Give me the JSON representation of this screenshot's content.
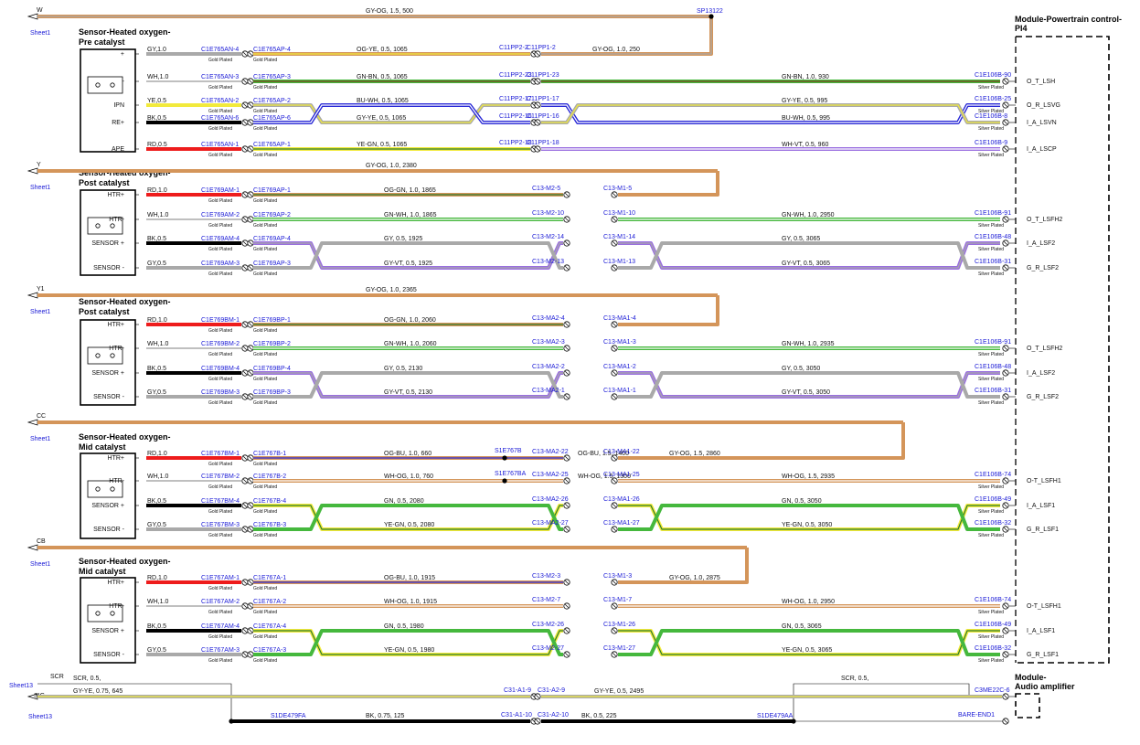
{
  "modules": {
    "pcm_title_line1": "Module-Powertrain control-",
    "pcm_title_line2": "PI4",
    "amp_title_line1": "Module-",
    "amp_title_line2": "Audio amplifier"
  },
  "colors": {
    "orange": "#d4955a",
    "gray": "#a9a9a9",
    "yellow": "#f2ea3c",
    "green": "#45b83d",
    "blue": "#2a2ad6",
    "black": "#000000",
    "red": "#ee1c1c",
    "purple": "#9a6fe0",
    "brown": "#7b3f1e",
    "darkgreen": "#2d7c2d"
  },
  "plating": {
    "gold": "Gold Plated",
    "silver": "Silver Plated"
  },
  "sections": [
    {
      "id": "s1",
      "feed": {
        "letter": "W",
        "sheet": "Sheet1",
        "spec": "GY-OG, 1.5, 500",
        "splice": "SP13122"
      },
      "title": [
        "Sensor-Heated oxygen-",
        "Pre catalyst"
      ],
      "rows": [
        {
          "pin": "+",
          "wire": "GY,1.0",
          "c1": "C1E765AN-4",
          "c2": "C1E765AP-4",
          "seg1": "OG-YE, 0.5, 1065",
          "m1": "C11PP2-2",
          "m2": "C11PP1-2",
          "seg2": "GY-OG, 1.0, 250",
          "pcm": "",
          "sig": "",
          "seg3": ""
        },
        {
          "pin": "-",
          "wire": "WH,1.0",
          "c1": "C1E765AN-3",
          "c2": "C1E765AP-3",
          "seg1": "GN-BN, 0.5, 1065",
          "m1": "C11PP2-23",
          "m2": "C11PP1-23",
          "seg2": "",
          "pcm": "C1E106B-90",
          "sig": "O_T_LSH",
          "seg3": "GN-BN, 1.0, 930"
        },
        {
          "pin": "IPN",
          "wire": "YE,0.5",
          "c1": "C1E765AN-2",
          "c2": "C1E765AP-2",
          "seg1": "GY-YE, 0.5, 1065",
          "m1": "C11PP2-17",
          "m2": "C11PP1-17",
          "seg2": "",
          "pcm": "C1E106B-25",
          "sig": "O_R_LSVG",
          "seg3": "BU-WH, 0.5, 995"
        },
        {
          "pin": "RE+",
          "wire": "BK,0.5",
          "c1": "C1E765AN-6",
          "c2": "C1E765AP-6",
          "seg1": "BU-WH, 0.5, 1065",
          "m1": "C11PP2-16",
          "m2": "C11PP1-16",
          "seg2": "",
          "pcm": "C1E106B-8",
          "sig": "I_A_LSVN",
          "seg3": "GY-YE, 0.5, 995"
        },
        {
          "pin": "APE",
          "wire": "RD,0.5",
          "c1": "C1E765AN-1",
          "c2": "C1E765AP-1",
          "seg1": "YE-GN, 0.5, 1065",
          "m1": "C11PP2-18",
          "m2": "C11PP1-18",
          "seg2": "",
          "pcm": "C1E106B-9",
          "sig": "I_A_LSCP",
          "seg3": "WH-VT, 0.5, 960"
        }
      ]
    },
    {
      "id": "s2",
      "feed": {
        "letter": "Y",
        "sheet": "Sheet1",
        "spec": "GY-OG, 1.0, 2380",
        "splice": ""
      },
      "title": [
        "Sensor-Heated oxygen-",
        "Post catalyst"
      ],
      "rows": [
        {
          "pin": "HTR+",
          "wire": "RD,1.0",
          "c1": "C1E769AM-1",
          "c2": "C1E769AP-1",
          "seg1": "OG-GN, 1.0, 1865",
          "m1": "C13-M2-5",
          "m2": "C13-M1-5",
          "seg2": "",
          "pcm": "",
          "sig": "",
          "seg3": ""
        },
        {
          "pin": "HTR-",
          "wire": "WH,1.0",
          "c1": "C1E769AM-2",
          "c2": "C1E769AP-2",
          "seg1": "GN-WH, 1.0, 1865",
          "m1": "C13-M2-10",
          "m2": "C13-M1-10",
          "seg2": "",
          "pcm": "C1E106B-91",
          "sig": "O_T_LSFH2",
          "seg3": "GN-WH, 1.0, 2950"
        },
        {
          "pin": "SENSOR +",
          "wire": "BK,0.5",
          "c1": "C1E769AM-4",
          "c2": "C1E769AP-4",
          "seg1": "GY-VT, 0.5, 1925",
          "m1": "C13-M2-14",
          "m2": "C13-M1-14",
          "seg2": "",
          "pcm": "C1E106B-48",
          "sig": "I_A_LSF2",
          "seg3": "GY-VT, 0.5, 3065"
        },
        {
          "pin": "SENSOR -",
          "wire": "GY,0.5",
          "c1": "C1E769AM-3",
          "c2": "C1E769AP-3",
          "seg1": "GY, 0.5, 1925",
          "m1": "C13-M2-13",
          "m2": "C13-M1-13",
          "seg2": "",
          "pcm": "C1E106B-31",
          "sig": "G_R_LSF2",
          "seg3": "GY, 0.5, 3065"
        }
      ]
    },
    {
      "id": "s3",
      "feed": {
        "letter": "Y1",
        "sheet": "Sheet1",
        "spec": "GY-OG, 1.0, 2365",
        "splice": ""
      },
      "title": [
        "Sensor-Heated oxygen-",
        "Post catalyst"
      ],
      "rows": [
        {
          "pin": "HTR+",
          "wire": "RD,1.0",
          "c1": "C1E769BM-1",
          "c2": "C1E769BP-1",
          "seg1": "OG-GN, 1.0, 2060",
          "m1": "C13-MA2-4",
          "m2": "C13-MA1-4",
          "seg2": "",
          "pcm": "",
          "sig": "",
          "seg3": ""
        },
        {
          "pin": "HTR-",
          "wire": "WH,1.0",
          "c1": "C1E769BM-2",
          "c2": "C1E769BP-2",
          "seg1": "GN-WH, 1.0, 2060",
          "m1": "C13-MA2-3",
          "m2": "C13-MA1-3",
          "seg2": "",
          "pcm": "C1E106B-91",
          "sig": "O_T_LSFH2",
          "seg3": "GN-WH, 1.0, 2935"
        },
        {
          "pin": "SENSOR +",
          "wire": "BK,0.5",
          "c1": "C1E769BM-4",
          "c2": "C1E769BP-4",
          "seg1": "GY-VT, 0.5, 2130",
          "m1": "C13-MA2-2",
          "m2": "C13-MA1-2",
          "seg2": "",
          "pcm": "C1E106B-48",
          "sig": "I_A_LSF2",
          "seg3": "GY-VT, 0.5, 3050"
        },
        {
          "pin": "SENSOR -",
          "wire": "GY,0.5",
          "c1": "C1E769BM-3",
          "c2": "C1E769BP-3",
          "seg1": "GY, 0.5, 2130",
          "m1": "C13-MA2-1",
          "m2": "C13-MA1-1",
          "seg2": "",
          "pcm": "C1E106B-31",
          "sig": "G_R_LSF2",
          "seg3": "GY, 0.5, 3050"
        }
      ]
    },
    {
      "id": "s4",
      "feed": {
        "letter": "CC",
        "sheet": "Sheet1",
        "spec": "",
        "splice": ""
      },
      "title": [
        "Sensor-Heated oxygen-",
        "Mid catalyst"
      ],
      "rows": [
        {
          "pin": "HTR+",
          "wire": "RD,1.0",
          "c1": "C1E767BM-1",
          "c2": "C1E767B-1",
          "seg1": "OG-BU, 1.0, 660",
          "mid": "S1E767B",
          "segm": "OG-BU, 1.5, 1400",
          "m1": "C13-MA2-22",
          "m2": "C13-MA1-22",
          "seg2": "GY-OG, 1.5, 2860",
          "pcm": "",
          "sig": "",
          "seg3": ""
        },
        {
          "pin": "HTR-",
          "wire": "WH,1.0",
          "c1": "C1E767BM-2",
          "c2": "C1E767B-2",
          "seg1": "WH-OG, 1.0, 760",
          "mid": "S1E767BA",
          "segm": "WH-OG, 1.5, 1300",
          "m1": "C13-MA2-25",
          "m2": "C13-MA1-25",
          "seg2": "",
          "pcm": "C1E106B-74",
          "sig": "O-T_LSFH1",
          "seg3": "WH-OG, 1.5, 2935"
        },
        {
          "pin": "SENSOR +",
          "wire": "BK,0.5",
          "c1": "C1E767BM-4",
          "c2": "C1E767B-4",
          "seg1": "YE-GN, 0.5, 2080",
          "m1": "C13-MA2-26",
          "m2": "C13-MA1-26",
          "seg2": "",
          "pcm": "C1E106B-49",
          "sig": "I_A_LSF1",
          "seg3": "YE-GN, 0.5, 3050"
        },
        {
          "pin": "SENSOR -",
          "wire": "GY,0.5",
          "c1": "C1E767BM-3",
          "c2": "C1E767B-3",
          "seg1": "GN, 0.5, 2080",
          "m1": "C13-MA2-27",
          "m2": "C13-MA1-27",
          "seg2": "",
          "pcm": "C1E106B-32",
          "sig": "G_R_LSF1",
          "seg3": "GN, 0.5, 3050"
        }
      ]
    },
    {
      "id": "s5",
      "feed": {
        "letter": "CB",
        "sheet": "Sheet1",
        "spec": "",
        "splice": ""
      },
      "title": [
        "Sensor-Heated oxygen-",
        "Mid catalyst"
      ],
      "rows": [
        {
          "pin": "HTR+",
          "wire": "RD,1.0",
          "c1": "C1E767AM-1",
          "c2": "C1E767A-1",
          "seg1": "OG-BU, 1.0, 1915",
          "m1": "C13-M2-3",
          "m2": "C13-M1-3",
          "seg2": "GY-OG, 1.0, 2875",
          "pcm": "",
          "sig": "",
          "seg3": ""
        },
        {
          "pin": "HTR-",
          "wire": "WH,1.0",
          "c1": "C1E767AM-2",
          "c2": "C1E767A-2",
          "seg1": "WH-OG, 1.0, 1915",
          "m1": "C13-M2-7",
          "m2": "C13-M1-7",
          "seg2": "",
          "pcm": "C1E106B-74",
          "sig": "O-T_LSFH1",
          "seg3": "WH-OG, 1.0, 2950"
        },
        {
          "pin": "SENSOR +",
          "wire": "BK,0.5",
          "c1": "C1E767AM-4",
          "c2": "C1E767A-4",
          "seg1": "YE-GN, 0.5, 1980",
          "m1": "C13-M2-26",
          "m2": "C13-M1-26",
          "seg2": "",
          "pcm": "C1E106B-49",
          "sig": "I_A_LSF1",
          "seg3": "YE-GN, 0.5, 3065"
        },
        {
          "pin": "SENSOR -",
          "wire": "GY,0.5",
          "c1": "C1E767AM-3",
          "c2": "C1E767A-3",
          "seg1": "GN, 0.5, 1980",
          "m1": "C13-M2-27",
          "m2": "C13-M1-27",
          "seg2": "",
          "pcm": "C1E106B-32",
          "sig": "G_R_LSF1",
          "seg3": "GN, 0.5, 3065"
        }
      ]
    }
  ],
  "audio": {
    "scr_label": "SCR",
    "scr_spec_left": "SCR,  0.5,",
    "scr_spec_right": "SCR,  0.5,",
    "sheet_top": "Sheet13",
    "sig_label": "SIG",
    "sheet_bottom": "Sheet13",
    "sig_spec1": "GY-YE,  0.75,  645",
    "sig_m1": "C31-A1-9",
    "sig_m2": "C31-A2-9",
    "sig_spec2": "GY-YE,  0.5,  2495",
    "sig_amp": "C3ME22C-6",
    "bk_splice_left": "S1DE479FA",
    "bk_spec1": "BK,  0.75,  125",
    "bk_m1": "C31-A1-10",
    "bk_m2": "C31-A2-10",
    "bk_spec2": "BK,  0.5,  225",
    "bk_splice_right": "S1DE479AA",
    "bare": "BARE-END1"
  }
}
